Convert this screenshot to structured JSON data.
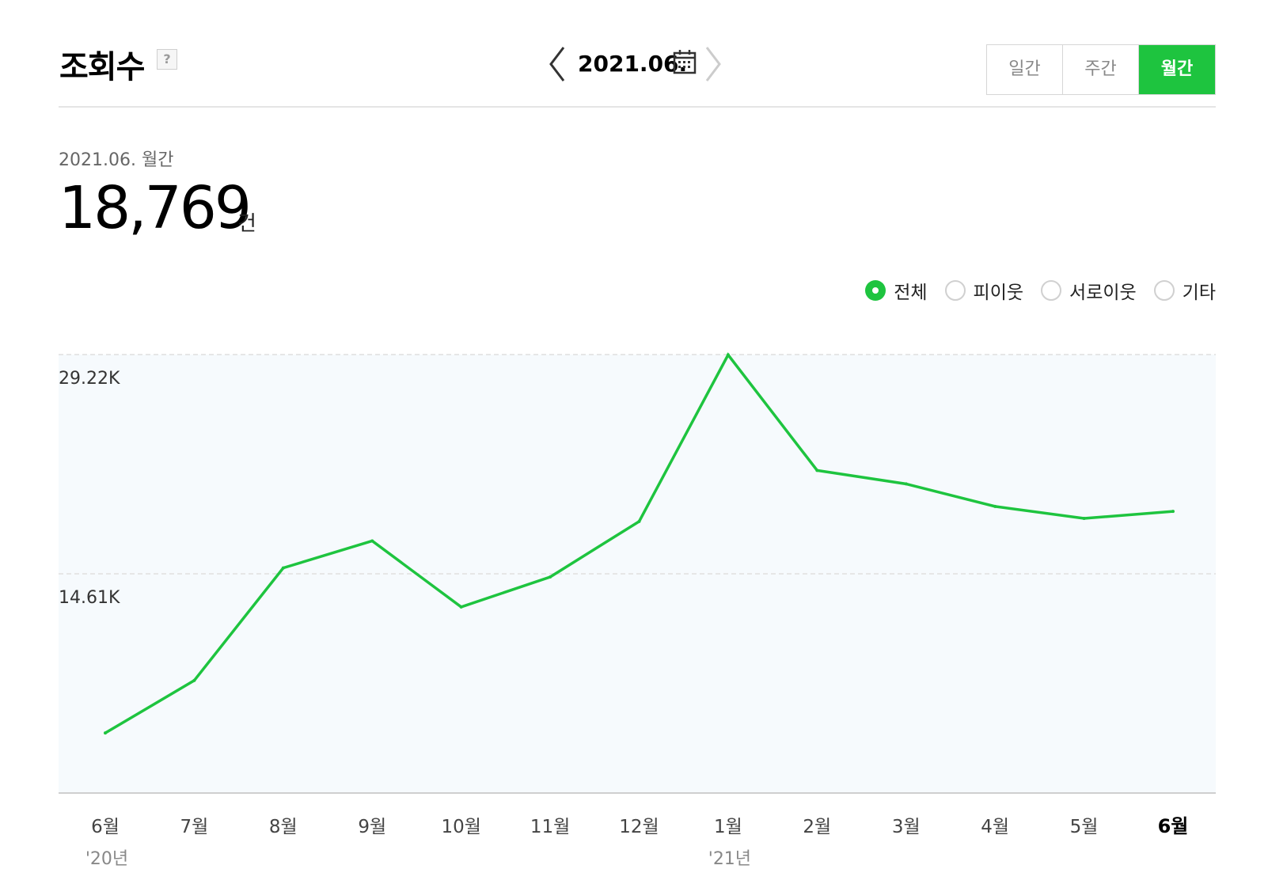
{
  "header": {
    "title": "조회수",
    "help_icon": "question-mark-icon",
    "date": "2021.06.",
    "periods": [
      "일간",
      "주간",
      "월간"
    ],
    "active_period": "월간"
  },
  "summary": {
    "period_label": "2021.06. 월간",
    "value": "18,769",
    "unit": "건"
  },
  "filters": [
    {
      "label": "전체",
      "selected": true
    },
    {
      "label": "피이웃",
      "selected": false
    },
    {
      "label": "서로이웃",
      "selected": false
    },
    {
      "label": "기타",
      "selected": false
    }
  ],
  "colors": {
    "accent": "#1ec43f",
    "plot_bg": "#f6fafd",
    "grid": "#e6e6e6"
  },
  "chart_data": {
    "type": "line",
    "categories": [
      "6월",
      "7월",
      "8월",
      "9월",
      "10월",
      "11월",
      "12월",
      "1월",
      "2월",
      "3월",
      "4월",
      "5월",
      "6월"
    ],
    "year_labels": [
      {
        "index": 0,
        "label": "'20년"
      },
      {
        "index": 7,
        "label": "'21년"
      }
    ],
    "highlight_index": 12,
    "series": [
      {
        "values": [
          4000,
          7500,
          15000,
          16800,
          12400,
          14400,
          18100,
          29200,
          21500,
          20600,
          19100,
          18300,
          18769
        ]
      }
    ],
    "y_ticks": [
      {
        "value": 14610,
        "label": "14.61K"
      },
      {
        "value": 29220,
        "label": "29.22K"
      }
    ],
    "ylim": [
      0,
      29220
    ],
    "grid": true,
    "legend": "none"
  }
}
